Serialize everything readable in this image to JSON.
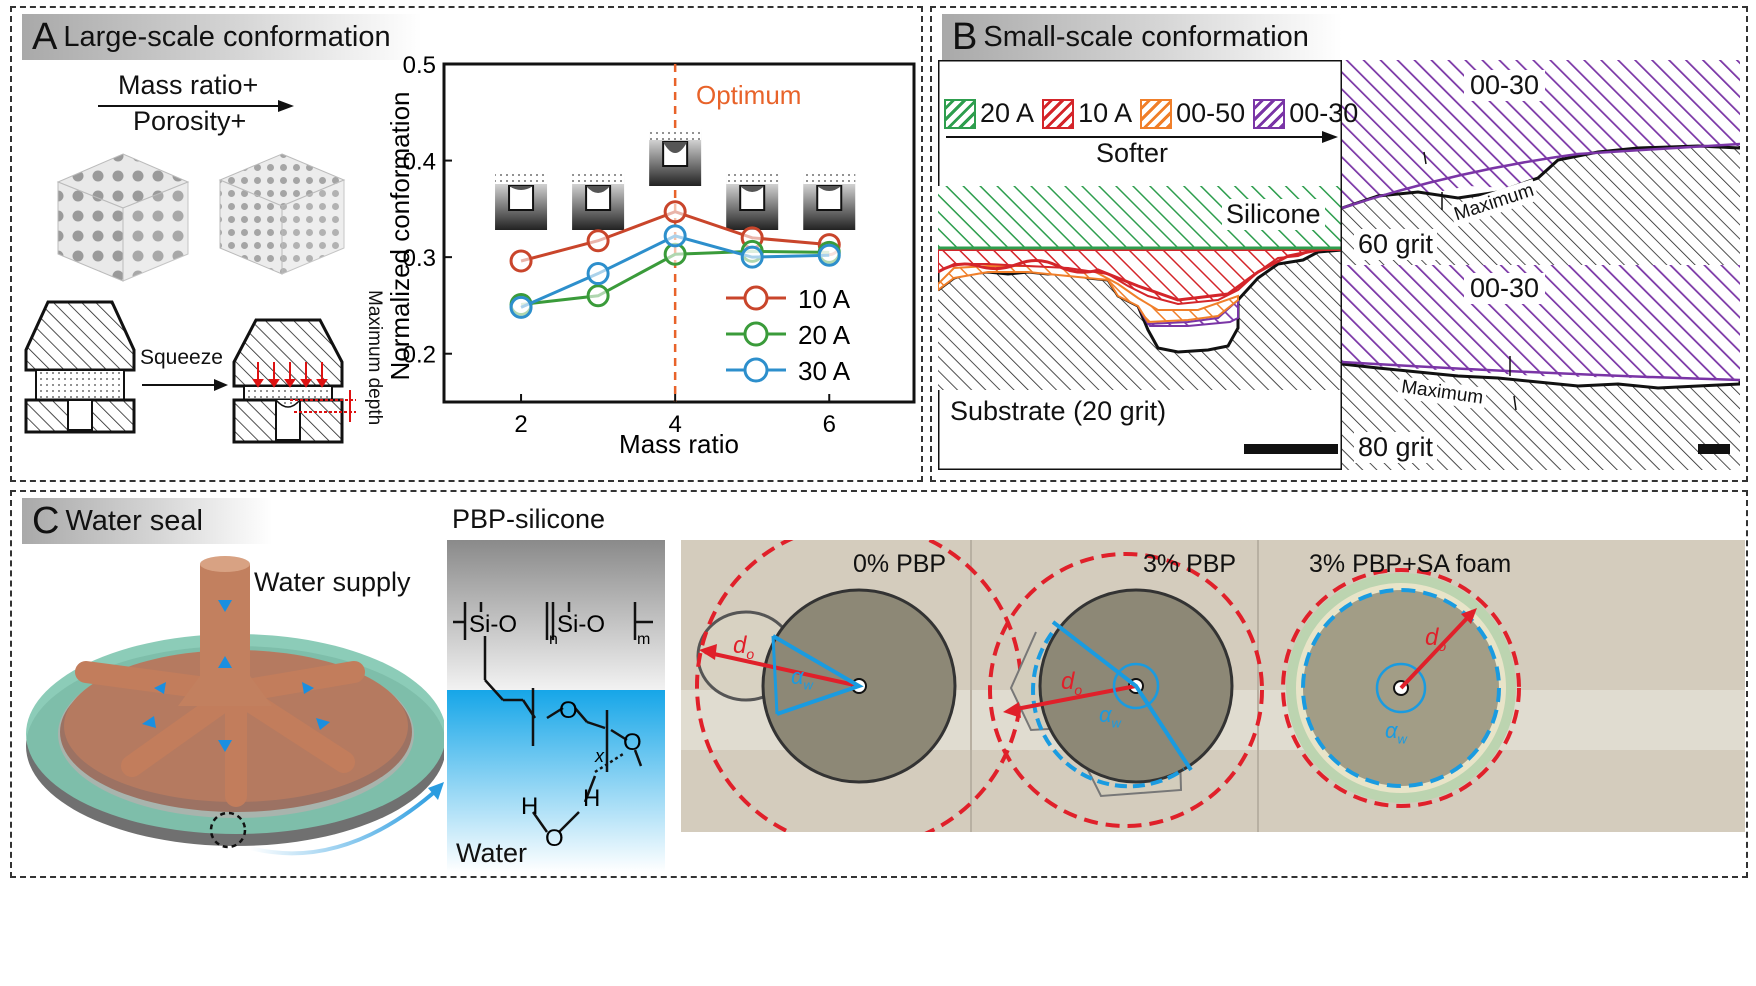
{
  "panels": {
    "a": {
      "letter": "A",
      "title": "Large-scale conformation"
    },
    "b": {
      "letter": "B",
      "title": "Small-scale conformation"
    },
    "c": {
      "letter": "C",
      "title": "Water seal"
    }
  },
  "panel_a": {
    "mass_ratio_label": "Mass ratio+",
    "porosity_label": "Porosity+",
    "squeeze_label": "Squeeze",
    "max_depth_label": "Maximum depth"
  },
  "chart_data": {
    "type": "line",
    "x": [
      2,
      3,
      4,
      5,
      6
    ],
    "xlabel": "Mass ratio",
    "ylabel": "Normalized conformation",
    "xlim": [
      1,
      7.1
    ],
    "ylim": [
      0.15,
      0.5
    ],
    "xticks": [
      "2",
      "4",
      "6"
    ],
    "yticks": [
      "0.2",
      "0.3",
      "0.4",
      "0.5"
    ],
    "annotation": "Optimum",
    "annotation_x": 4,
    "grid": false,
    "legend_position": "bottom-right",
    "series": [
      {
        "name": "10 A",
        "color": "#c9452b",
        "values": [
          0.296,
          0.317,
          0.347,
          0.32,
          0.313
        ]
      },
      {
        "name": "20 A",
        "color": "#3a9b3a",
        "values": [
          0.251,
          0.26,
          0.303,
          0.306,
          0.305
        ]
      },
      {
        "name": "30 A",
        "color": "#2d8fcc",
        "values": [
          0.248,
          0.283,
          0.322,
          0.3,
          0.302
        ]
      }
    ]
  },
  "panel_b": {
    "legend": [
      {
        "label": "20 A",
        "color": "#2e9e4e"
      },
      {
        "label": "10 A",
        "color": "#d4252a"
      },
      {
        "label": "00-50",
        "color": "#f07f2a"
      },
      {
        "label": "00-30",
        "color": "#7a35a6"
      }
    ],
    "softer_label": "Softer",
    "silicone_label": "Silicone",
    "substrate_label": "Substrate (20 grit)",
    "inset_top": {
      "tag": "00-30",
      "grit": "60 grit",
      "maximum": "Maximum"
    },
    "inset_bottom": {
      "tag": "00-30",
      "grit": "80 grit",
      "maximum": "Maximum"
    }
  },
  "panel_c": {
    "water_supply": "Water supply",
    "pbp_title": "PBP-silicone",
    "water_label": "Water",
    "chem": {
      "unit": "Si-O",
      "n": "n",
      "m": "m",
      "x": "x",
      "o": "O",
      "h": "H"
    },
    "photos": [
      {
        "label": "0% PBP",
        "d": "d",
        "d_sub": "o",
        "a": "α",
        "a_sub": "w"
      },
      {
        "label": "3% PBP",
        "d": "d",
        "d_sub": "o",
        "a": "α",
        "a_sub": "w"
      },
      {
        "label": "3% PBP+SA foam",
        "d": "d",
        "d_sub": "o",
        "a": "α",
        "a_sub": "w"
      }
    ]
  }
}
